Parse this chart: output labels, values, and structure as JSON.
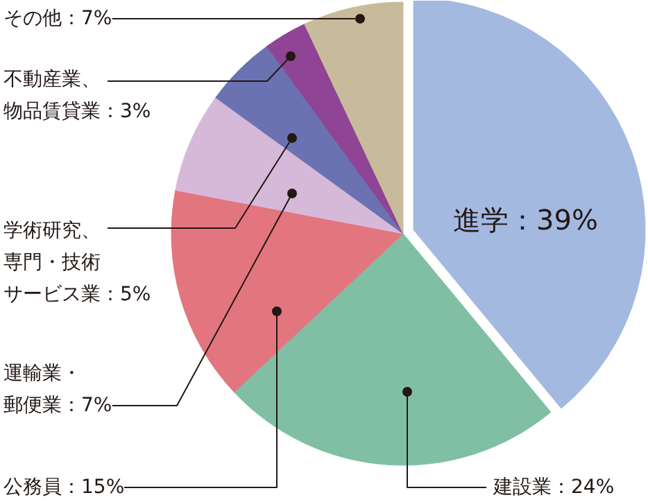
{
  "chart_data": {
    "type": "pie",
    "categories": [
      "進学",
      "建設業",
      "公務員",
      "運輸業・郵便業",
      "学術研究、専門・技術サービス業",
      "不動産業、物品賃貸業",
      "その他"
    ],
    "values": [
      39,
      24,
      15,
      7,
      5,
      3,
      7
    ],
    "colors": [
      "#a3b9e0",
      "#80bfa3",
      "#e3757f",
      "#d6b9d8",
      "#6a72b1",
      "#8f4495",
      "#c8bb9c"
    ],
    "value_labels": [
      "：39%",
      "：24%",
      "：15%",
      "：7%",
      "：5%",
      "：3%",
      "：7%"
    ]
  }
}
